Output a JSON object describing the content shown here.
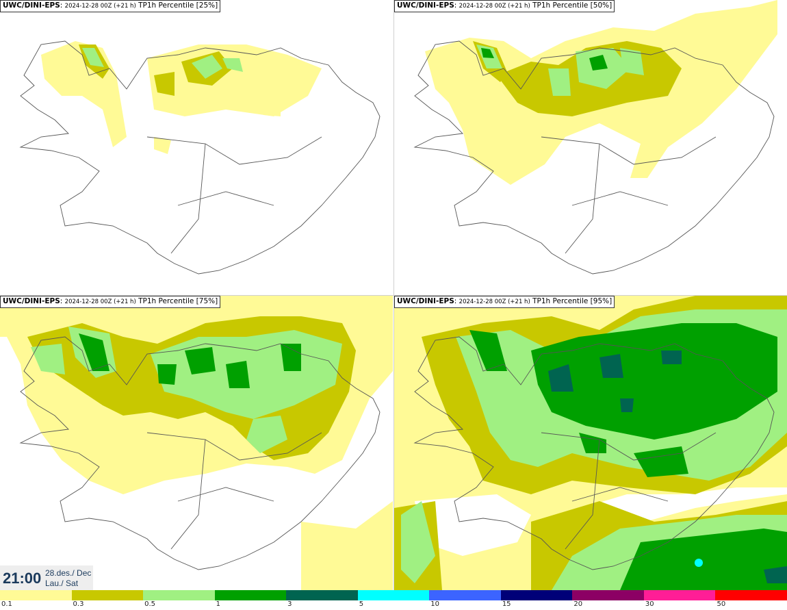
{
  "model": "UWC/DINI-EPS",
  "run": "2024-12-28 00Z (+21 h)",
  "panels": [
    {
      "title_suffix": "TP1h Percentile [25%]",
      "percentile": 25
    },
    {
      "title_suffix": "TP1h Percentile [50%]",
      "percentile": 50
    },
    {
      "title_suffix": "TP1h Percentile [75%]",
      "percentile": 75
    },
    {
      "title_suffix": "TP1h Percentile [95%]",
      "percentile": 95
    }
  ],
  "valid_time": {
    "time": "21:00",
    "date_line1": "28.des./ Dec",
    "date_line2": "Lau./ Sat"
  },
  "legend": {
    "thresholds": [
      "0.1",
      "0.3",
      "0.5",
      "1",
      "3",
      "5",
      "10",
      "15",
      "20",
      "30",
      "50"
    ],
    "colors": [
      "#fffa96",
      "#c8c800",
      "#a0f082",
      "#00a000",
      "#006450",
      "#00ffff",
      "#3c64ff",
      "#000078",
      "#8c0064",
      "#ff1e96",
      "#ff0000"
    ]
  }
}
